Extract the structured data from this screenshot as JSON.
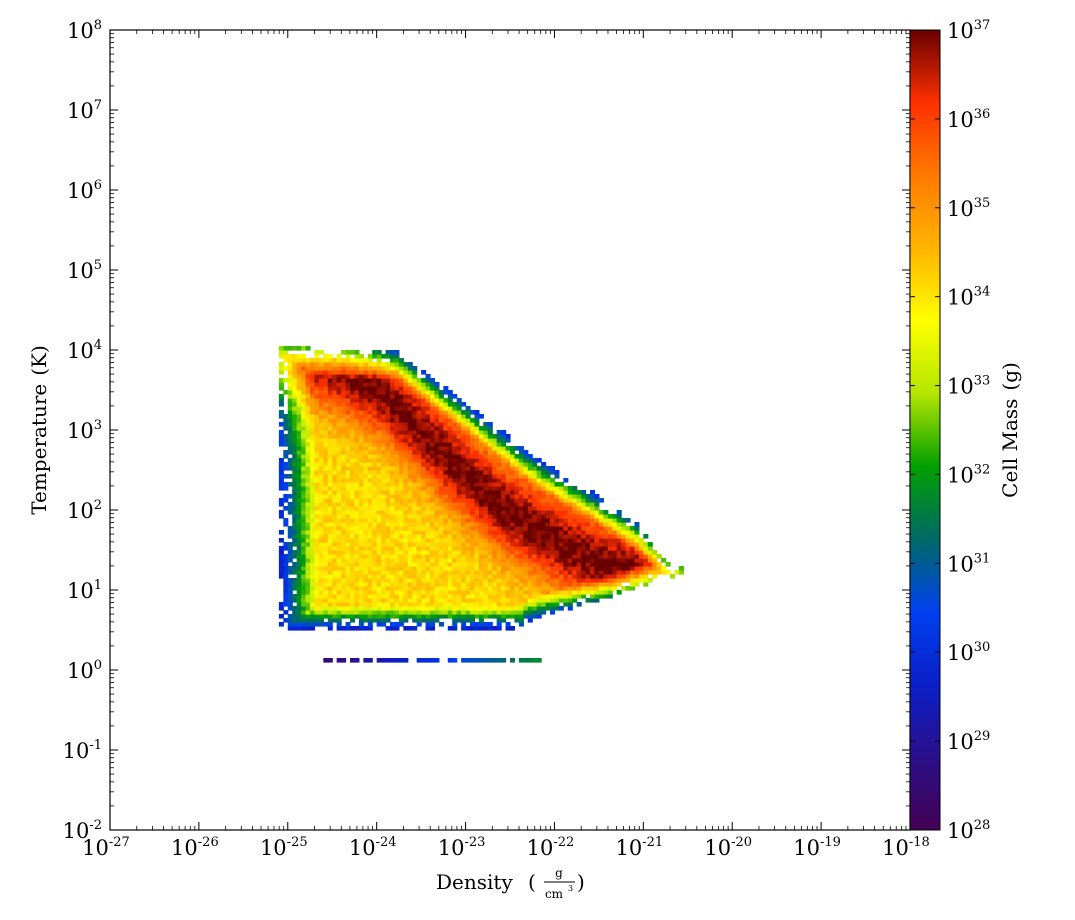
{
  "chart_data": {
    "type": "heatmap",
    "title": "",
    "xlabel": "Density",
    "xlabel_units": {
      "numerator": "g",
      "denominator": "cm",
      "denominator_exponent": "3"
    },
    "ylabel": "Temperature",
    "ylabel_units": "(K)",
    "xscale": "log",
    "yscale": "log",
    "xlim": [
      1e-27,
      1e-18
    ],
    "ylim": [
      0.01,
      100000000
    ],
    "x_ticks": [
      {
        "base": "10",
        "exp": "-27",
        "value": 1e-27
      },
      {
        "base": "10",
        "exp": "-26",
        "value": 1e-26
      },
      {
        "base": "10",
        "exp": "-25",
        "value": 1e-25
      },
      {
        "base": "10",
        "exp": "-24",
        "value": 1e-24
      },
      {
        "base": "10",
        "exp": "-23",
        "value": 1e-23
      },
      {
        "base": "10",
        "exp": "-22",
        "value": 1e-22
      },
      {
        "base": "10",
        "exp": "-21",
        "value": 1e-21
      },
      {
        "base": "10",
        "exp": "-20",
        "value": 1e-20
      },
      {
        "base": "10",
        "exp": "-19",
        "value": 1e-19
      },
      {
        "base": "10",
        "exp": "-18",
        "value": 1e-18
      }
    ],
    "y_ticks": [
      {
        "base": "10",
        "exp": "-2",
        "value": 0.01
      },
      {
        "base": "10",
        "exp": "-1",
        "value": 0.1
      },
      {
        "base": "10",
        "exp": "0",
        "value": 1
      },
      {
        "base": "10",
        "exp": "1",
        "value": 10
      },
      {
        "base": "10",
        "exp": "2",
        "value": 100
      },
      {
        "base": "10",
        "exp": "3",
        "value": 1000
      },
      {
        "base": "10",
        "exp": "4",
        "value": 10000
      },
      {
        "base": "10",
        "exp": "5",
        "value": 100000
      },
      {
        "base": "10",
        "exp": "6",
        "value": 1000000
      },
      {
        "base": "10",
        "exp": "7",
        "value": 10000000
      },
      {
        "base": "10",
        "exp": "8",
        "value": 100000000
      }
    ],
    "colorbar": {
      "label": "Cell Mass",
      "units": "(g)",
      "scale": "log",
      "range": [
        1e+28,
        1e+37
      ],
      "ticks": [
        {
          "base": "10",
          "exp": "28",
          "value": 1e+28
        },
        {
          "base": "10",
          "exp": "29",
          "value": 1e+29
        },
        {
          "base": "10",
          "exp": "30",
          "value": 1e+30
        },
        {
          "base": "10",
          "exp": "31",
          "value": 1e+31
        },
        {
          "base": "10",
          "exp": "32",
          "value": 1e+32
        },
        {
          "base": "10",
          "exp": "33",
          "value": 1e+33
        },
        {
          "base": "10",
          "exp": "34",
          "value": 1e+34
        },
        {
          "base": "10",
          "exp": "35",
          "value": 1e+35
        },
        {
          "base": "10",
          "exp": "36",
          "value": 1e+36
        },
        {
          "base": "10",
          "exp": "37",
          "value": 1e+37
        }
      ],
      "colormap_stops": [
        "#440154",
        "#2b0f8a",
        "#0a1fc8",
        "#0040f0",
        "#006a66",
        "#00a000",
        "#b4e600",
        "#ffff00",
        "#ffb400",
        "#ff7a00",
        "#ff3000",
        "#680000"
      ]
    },
    "structure": {
      "log10_density_min": -25.1,
      "log10_density_max": -20.6,
      "log10_temperature_min": 0.5,
      "log10_temperature_max": 4.0,
      "hot_branch_upper_edge": [
        {
          "log10_density": -24.8,
          "log10_temperature": 4.0
        },
        {
          "log10_density": -23.8,
          "log10_temperature": 3.95
        },
        {
          "log10_density": -23.0,
          "log10_temperature": 3.3
        },
        {
          "log10_density": -22.2,
          "log10_temperature": 2.6
        },
        {
          "log10_density": -21.6,
          "log10_temperature": 2.2
        },
        {
          "log10_density": -21.1,
          "log10_temperature": 1.8
        },
        {
          "log10_density": -20.7,
          "log10_temperature": 1.25
        }
      ],
      "ridge_log10_temperature_vs_log10_density": [
        {
          "log10_density": -24.7,
          "log10_temperature": 3.9
        },
        {
          "log10_density": -24.0,
          "log10_temperature": 3.5
        },
        {
          "log10_density": -23.2,
          "log10_temperature": 2.6
        },
        {
          "log10_density": -22.6,
          "log10_temperature": 2.0
        },
        {
          "log10_density": -22.0,
          "log10_temperature": 1.6
        },
        {
          "log10_density": -21.5,
          "log10_temperature": 1.3
        },
        {
          "log10_density": -20.8,
          "log10_temperature": 1.1
        }
      ],
      "floor_row_log10_temperature": 0.1,
      "floor_row_log10_density_range": [
        -24.6,
        -22.1
      ]
    }
  }
}
